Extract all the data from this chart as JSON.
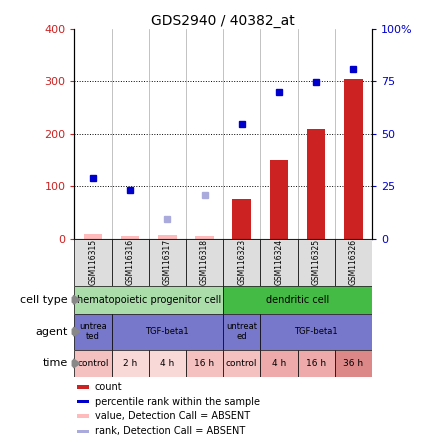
{
  "title": "GDS2940 / 40382_at",
  "samples": [
    "GSM116315",
    "GSM116316",
    "GSM116317",
    "GSM116318",
    "GSM116323",
    "GSM116324",
    "GSM116325",
    "GSM116326"
  ],
  "count_values": [
    10,
    5,
    8,
    5,
    75,
    150,
    210,
    305
  ],
  "count_absent": [
    true,
    true,
    true,
    true,
    false,
    false,
    false,
    false
  ],
  "rank_values": [
    115,
    93,
    38,
    83,
    218,
    280,
    298,
    323
  ],
  "rank_absent": [
    false,
    false,
    true,
    true,
    false,
    false,
    false,
    false
  ],
  "ylim_left": [
    0,
    400
  ],
  "ylim_right": [
    0,
    100
  ],
  "yticks_left": [
    0,
    100,
    200,
    300,
    400
  ],
  "yticks_right": [
    0,
    25,
    50,
    75,
    100
  ],
  "ytick_labels_right": [
    "0",
    "25",
    "50",
    "75",
    "100%"
  ],
  "cell_type_groups": [
    {
      "label": "hematopoietic progenitor cell",
      "start": 0,
      "end": 4,
      "color": "#aaddaa"
    },
    {
      "label": "dendritic cell",
      "start": 4,
      "end": 8,
      "color": "#44bb44"
    }
  ],
  "agent_groups": [
    {
      "label": "untrea\nted",
      "start": 0,
      "end": 1
    },
    {
      "label": "TGF-beta1",
      "start": 1,
      "end": 4
    },
    {
      "label": "untreat\ned",
      "start": 4,
      "end": 5
    },
    {
      "label": "TGF-beta1",
      "start": 5,
      "end": 8
    }
  ],
  "agent_color": "#7777cc",
  "time_labels": [
    "control",
    "2 h",
    "4 h",
    "16 h",
    "control",
    "4 h",
    "16 h",
    "36 h"
  ],
  "time_colors": [
    "#f4c0c0",
    "#f9d8d8",
    "#f9d8d8",
    "#f4c0c0",
    "#f4c0c0",
    "#eeaaaa",
    "#eeaaaa",
    "#dd8888"
  ],
  "bar_color_present": "#cc2222",
  "bar_color_absent": "#ffbbbb",
  "rank_color_present": "#0000cc",
  "rank_color_absent": "#aaaadd",
  "bg_color": "#ffffff",
  "left_axis_color": "#cc2222",
  "right_axis_color": "#0000cc",
  "sample_box_color": "#dddddd",
  "row_label_color": "#333333"
}
